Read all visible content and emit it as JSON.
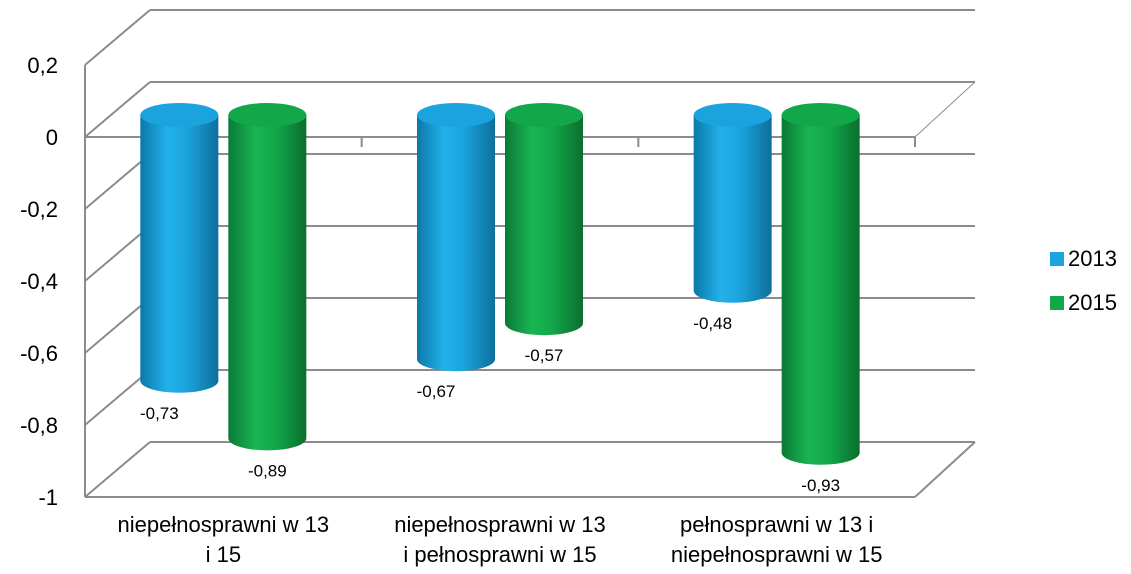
{
  "chart_data": {
    "type": "bar",
    "title": "",
    "xlabel": "",
    "ylabel": "",
    "ylim": [
      -1,
      0.2
    ],
    "yticks": [
      0.2,
      0,
      -0.2,
      -0.4,
      -0.6,
      -0.8,
      -1
    ],
    "ytick_labels": [
      "0,2",
      "0",
      "-0,2",
      "-0,4",
      "-0,6",
      "-0,8",
      "-1"
    ],
    "grid": true,
    "legend_position": "right",
    "style": "3d-cylinder",
    "categories": [
      [
        "niepełnosprawni w 13",
        "i 15"
      ],
      [
        "niepełnosprawni w 13",
        "i pełnosprawni w 15"
      ],
      [
        "pełnosprawni w 13 i",
        "niepełnosprawni w 15"
      ]
    ],
    "series": [
      {
        "name": "2013",
        "color": "#1AA3DC",
        "values": [
          -0.73,
          -0.67,
          -0.48
        ],
        "labels": [
          "-0,73",
          "-0,67",
          "-0,48"
        ]
      },
      {
        "name": "2015",
        "color": "#12A84A",
        "values": [
          -0.89,
          -0.57,
          -0.93
        ],
        "labels": [
          "-0,89",
          "-0,57",
          "-0,93"
        ]
      }
    ]
  }
}
